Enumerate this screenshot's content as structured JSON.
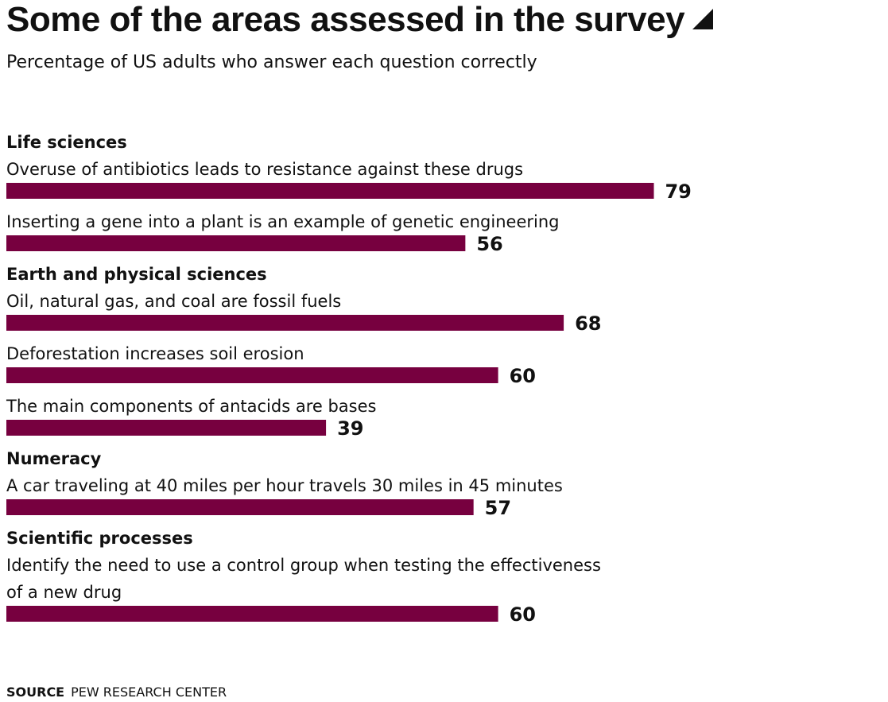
{
  "title": "Some of the areas assessed in the survey",
  "subtitle": "Percentage of US adults who answer each question correctly",
  "source": {
    "label": "SOURCE",
    "text": "PEW RESEARCH CENTER"
  },
  "colors": {
    "bar": "#77003f",
    "text": "#111111"
  },
  "icons": {
    "title_marker": "triangle-icon"
  },
  "chart_data": {
    "type": "bar",
    "orientation": "horizontal",
    "xlim": [
      0,
      100
    ],
    "grid": false,
    "data_labels": true,
    "groups": [
      {
        "name": "Life sciences",
        "items": [
          {
            "question": [
              "Overuse of antibiotics leads to resistance against these drugs"
            ],
            "value": 79
          },
          {
            "question": [
              "Inserting a gene into a plant is an example of genetic engineering"
            ],
            "value": 56
          }
        ]
      },
      {
        "name": "Earth and physical sciences",
        "items": [
          {
            "question": [
              "Oil, natural gas, and coal are fossil fuels"
            ],
            "value": 68
          },
          {
            "question": [
              "Deforestation increases soil erosion"
            ],
            "value": 60
          },
          {
            "question": [
              "The main components of antacids are bases"
            ],
            "value": 39
          }
        ]
      },
      {
        "name": "Numeracy",
        "items": [
          {
            "question": [
              "A car traveling at 40 miles per hour travels 30 miles in 45 minutes"
            ],
            "value": 57
          }
        ]
      },
      {
        "name": "Scientific processes",
        "items": [
          {
            "question": [
              "Identify the need to use a control group when testing the effectiveness",
              "of a new drug"
            ],
            "value": 60
          }
        ]
      }
    ]
  }
}
